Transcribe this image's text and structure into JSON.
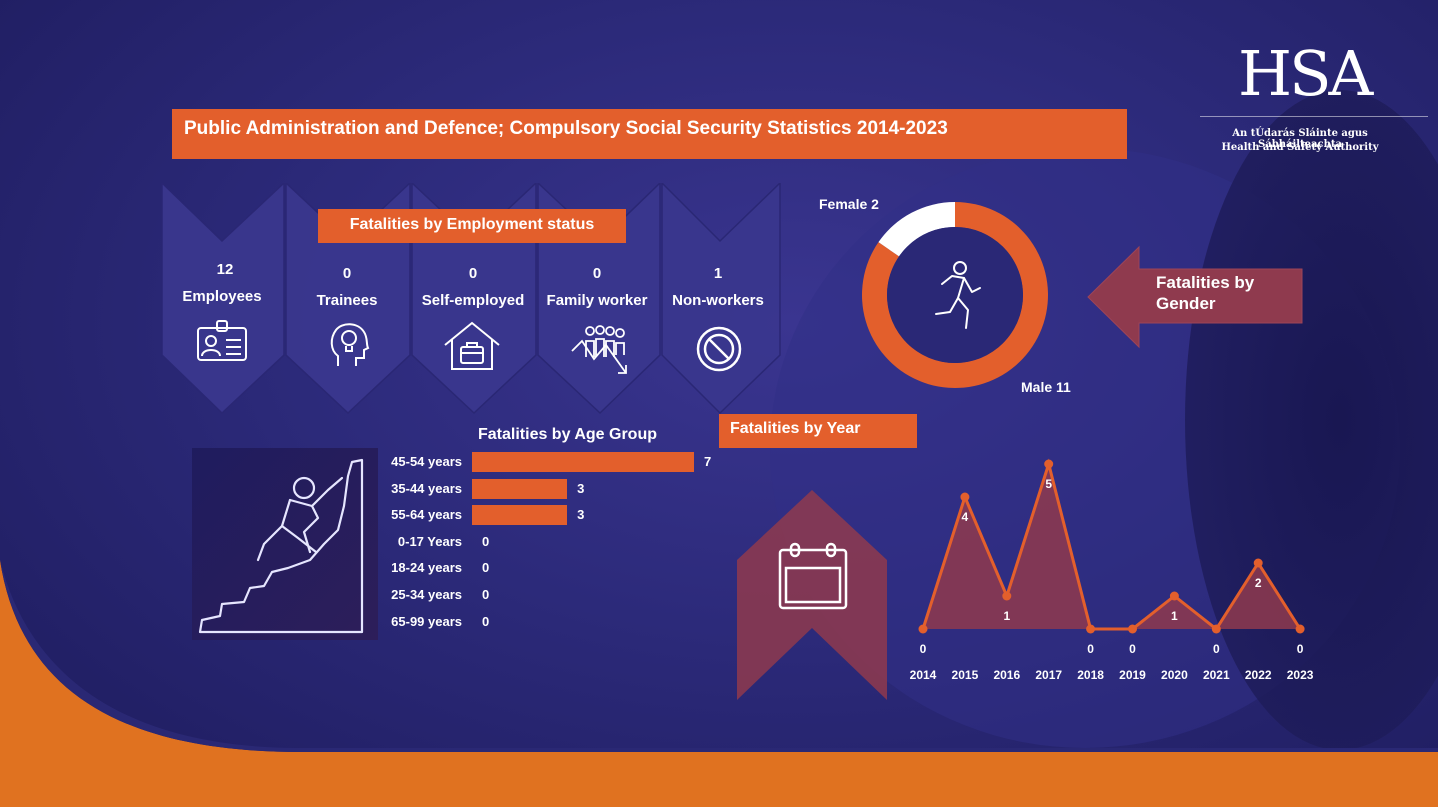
{
  "title": "Public Administration and Defence; Compulsory Social Security Statistics 2014-2023",
  "logo": {
    "text": "HSA",
    "subtitle_line1": "An tÚdarás Sláinte agus Sábháilteachta",
    "subtitle_line2": "Health and Safety Authority"
  },
  "colors": {
    "accent": "#e35f2c",
    "background": "#2c2a7a",
    "bottom_band": "#e07220"
  },
  "employment": {
    "title": "Fatalities by Employment status",
    "items": [
      {
        "value": "12",
        "label": "Employees",
        "icon": "id-card-icon"
      },
      {
        "value": "0",
        "label": "Trainees",
        "icon": "head-lightbulb-icon"
      },
      {
        "value": "0",
        "label": "Self-employed",
        "icon": "house-briefcase-icon"
      },
      {
        "value": "0",
        "label": "Family worker",
        "icon": "family-group-icon"
      },
      {
        "value": "1",
        "label": "Non-workers",
        "icon": "no-entry-icon"
      }
    ]
  },
  "gender": {
    "title_line1": "Fatalities by",
    "title_line2": "Gender",
    "female_label": "Female 2",
    "male_label": "Male 11"
  },
  "age": {
    "title": "Fatalities by Age Group"
  },
  "year": {
    "title": "Fatalities by Year"
  },
  "chart_data": [
    {
      "type": "pie",
      "title": "Fatalities by Gender",
      "categories": [
        "Female",
        "Male"
      ],
      "values": [
        2,
        11
      ],
      "colors": [
        "#ffffff",
        "#e35f2c"
      ]
    },
    {
      "type": "bar",
      "orientation": "horizontal",
      "title": "Fatalities by Age Group",
      "categories": [
        "45-54 years",
        "35-44 years",
        "55-64 years",
        "0-17 Years",
        "18-24 years",
        "25-34 years",
        "65-99 years"
      ],
      "values": [
        7,
        3,
        3,
        0,
        0,
        0,
        0
      ]
    },
    {
      "type": "area",
      "title": "Fatalities by Year",
      "x": [
        "2014",
        "2015",
        "2016",
        "2017",
        "2018",
        "2019",
        "2020",
        "2021",
        "2022",
        "2023"
      ],
      "values": [
        0,
        4,
        1,
        5,
        0,
        0,
        1,
        0,
        2,
        0
      ],
      "ylim": [
        0,
        5
      ]
    }
  ]
}
